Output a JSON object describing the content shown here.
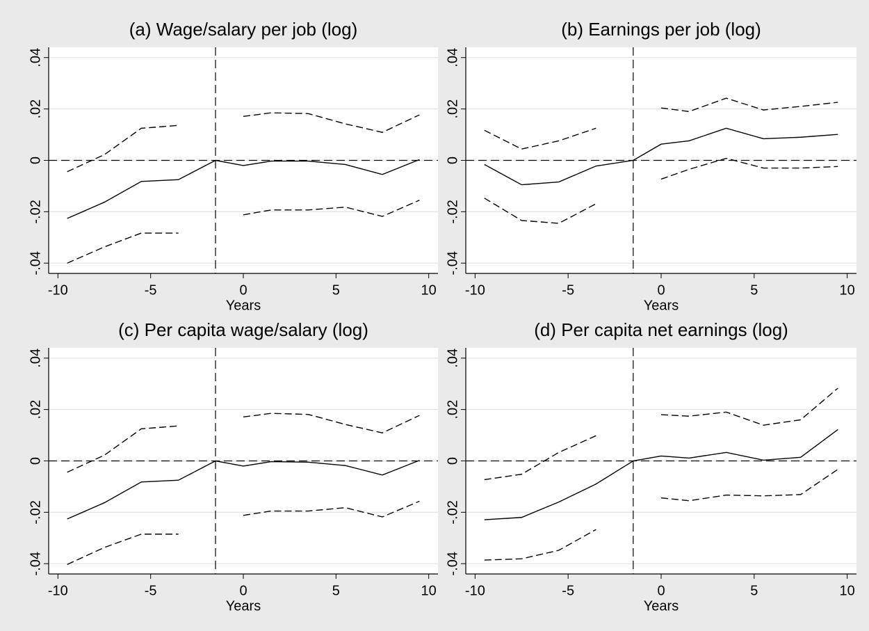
{
  "chart_data": [
    {
      "type": "line",
      "title": "(a) Wage/salary per job (log)",
      "xlabel": "Years",
      "x": [
        -9.5,
        -7.5,
        -5.5,
        -3.5,
        -1.5,
        0,
        1.5,
        3.5,
        5.5,
        7.5,
        9.5
      ],
      "series": [
        {
          "color": "#000000",
          "dash": "solid",
          "values": [
            -0.0226,
            -0.0163,
            -0.0082,
            -0.0075,
            0,
            -0.002,
            -0.0003,
            -0.0003,
            -0.0016,
            -0.0055,
            0.0003
          ]
        },
        {
          "color": "#000000",
          "dash": "dashed",
          "values": [
            -0.0044,
            0.0022,
            0.0125,
            0.0136,
            null,
            0.0171,
            0.0185,
            0.0182,
            0.0142,
            0.0109,
            0.0177
          ]
        },
        {
          "color": "#000000",
          "dash": "dashed",
          "values": [
            -0.04,
            -0.0337,
            -0.0283,
            -0.0283,
            null,
            -0.0212,
            -0.0193,
            -0.0193,
            -0.0182,
            -0.0218,
            -0.0155
          ]
        }
      ],
      "xlim": [
        -10.5,
        10.5
      ],
      "xticks": [
        -10,
        -5,
        0,
        5,
        10
      ],
      "ylim": [
        -0.044,
        0.044
      ],
      "yticks": [
        {
          "value": -0.04,
          "label": "-.04"
        },
        {
          "value": -0.02,
          "label": "-.02"
        },
        0,
        {
          "value": 0.02,
          "label": ".02"
        },
        {
          "value": 0.04,
          "label": ".04"
        }
      ],
      "vline": -1.5,
      "hline": 0,
      "grid": true
    },
    {
      "type": "line",
      "title": "(b) Earnings per job (log)",
      "xlabel": "Years",
      "x": [
        -9.5,
        -7.5,
        -5.5,
        -3.5,
        -1.5,
        0,
        1.5,
        3.5,
        5.5,
        7.5,
        9.5
      ],
      "series": [
        {
          "color": "#000000",
          "dash": "solid",
          "values": [
            -0.0016,
            -0.0095,
            -0.0084,
            -0.0022,
            0,
            0.0063,
            0.0076,
            0.0125,
            0.0084,
            0.009,
            0.0101
          ]
        },
        {
          "color": "#000000",
          "dash": "dashed",
          "values": [
            0.0117,
            0.0044,
            0.0076,
            0.0125,
            null,
            0.0204,
            0.019,
            0.0242,
            0.0196,
            0.021,
            0.0226
          ]
        },
        {
          "color": "#000000",
          "dash": "dashed",
          "values": [
            -0.0147,
            -0.0234,
            -0.0245,
            -0.0169,
            null,
            -0.0073,
            -0.0035,
            0.0008,
            -0.003,
            -0.003,
            -0.0024
          ]
        }
      ],
      "xlim": [
        -10.5,
        10.5
      ],
      "xticks": [
        -10,
        -5,
        0,
        5,
        10
      ],
      "ylim": [
        -0.044,
        0.044
      ],
      "yticks": [
        {
          "value": -0.04,
          "label": "-.04"
        },
        {
          "value": -0.02,
          "label": "-.02"
        },
        0,
        {
          "value": 0.02,
          "label": ".02"
        },
        {
          "value": 0.04,
          "label": ".04"
        }
      ],
      "vline": -1.5,
      "hline": 0,
      "grid": true
    },
    {
      "type": "line",
      "title": "(c) Per capita wage/salary (log)",
      "xlabel": "Years",
      "x": [
        -9.5,
        -7.5,
        -5.5,
        -3.5,
        -1.5,
        0,
        1.5,
        3.5,
        5.5,
        7.5,
        9.5
      ],
      "series": [
        {
          "color": "#000000",
          "dash": "solid",
          "values": [
            -0.0226,
            -0.0163,
            -0.0082,
            -0.0075,
            0,
            -0.002,
            -0.0003,
            -0.0005,
            -0.0018,
            -0.0055,
            0.0002
          ]
        },
        {
          "color": "#000000",
          "dash": "dashed",
          "values": [
            -0.0044,
            0.0022,
            0.0125,
            0.0136,
            null,
            0.0171,
            0.0185,
            0.0181,
            0.0142,
            0.0109,
            0.0177
          ]
        },
        {
          "color": "#000000",
          "dash": "dashed",
          "values": [
            -0.0403,
            -0.0337,
            -0.0285,
            -0.0285,
            null,
            -0.0212,
            -0.0195,
            -0.0195,
            -0.0182,
            -0.0218,
            -0.0157
          ]
        }
      ],
      "xlim": [
        -10.5,
        10.5
      ],
      "xticks": [
        -10,
        -5,
        0,
        5,
        10
      ],
      "ylim": [
        -0.044,
        0.044
      ],
      "yticks": [
        {
          "value": -0.04,
          "label": "-.04"
        },
        {
          "value": -0.02,
          "label": "-.02"
        },
        0,
        {
          "value": 0.02,
          "label": ".02"
        },
        {
          "value": 0.04,
          "label": ".04"
        }
      ],
      "vline": -1.5,
      "hline": 0,
      "grid": true
    },
    {
      "type": "line",
      "title": "(d) Per capita net earnings (log)",
      "xlabel": "Years",
      "x": [
        -9.5,
        -7.5,
        -5.5,
        -3.5,
        -1.5,
        0,
        1.5,
        3.5,
        5.5,
        7.5,
        9.5
      ],
      "series": [
        {
          "color": "#000000",
          "dash": "solid",
          "values": [
            -0.0229,
            -0.022,
            -0.016,
            -0.009,
            0,
            0.0019,
            0.0011,
            0.0033,
            0.0003,
            0.0014,
            0.0122
          ]
        },
        {
          "color": "#000000",
          "dash": "dashed",
          "values": [
            -0.0073,
            -0.0052,
            0.0033,
            0.0098,
            null,
            0.018,
            0.0174,
            0.019,
            0.0139,
            0.016,
            0.0283
          ]
        },
        {
          "color": "#000000",
          "dash": "dashed",
          "values": [
            -0.0386,
            -0.0381,
            -0.0348,
            -0.0267,
            null,
            -0.0144,
            -0.0155,
            -0.0133,
            -0.0136,
            -0.0131,
            -0.0033
          ]
        }
      ],
      "xlim": [
        -10.5,
        10.5
      ],
      "xticks": [
        -10,
        -5,
        0,
        5,
        10
      ],
      "ylim": [
        -0.044,
        0.044
      ],
      "yticks": [
        {
          "value": -0.04,
          "label": "-.04"
        },
        {
          "value": -0.02,
          "label": "-.02"
        },
        0,
        {
          "value": 0.02,
          "label": ".02"
        },
        {
          "value": 0.04,
          "label": ".04"
        }
      ],
      "vline": -1.5,
      "hline": 0,
      "grid": true
    }
  ]
}
